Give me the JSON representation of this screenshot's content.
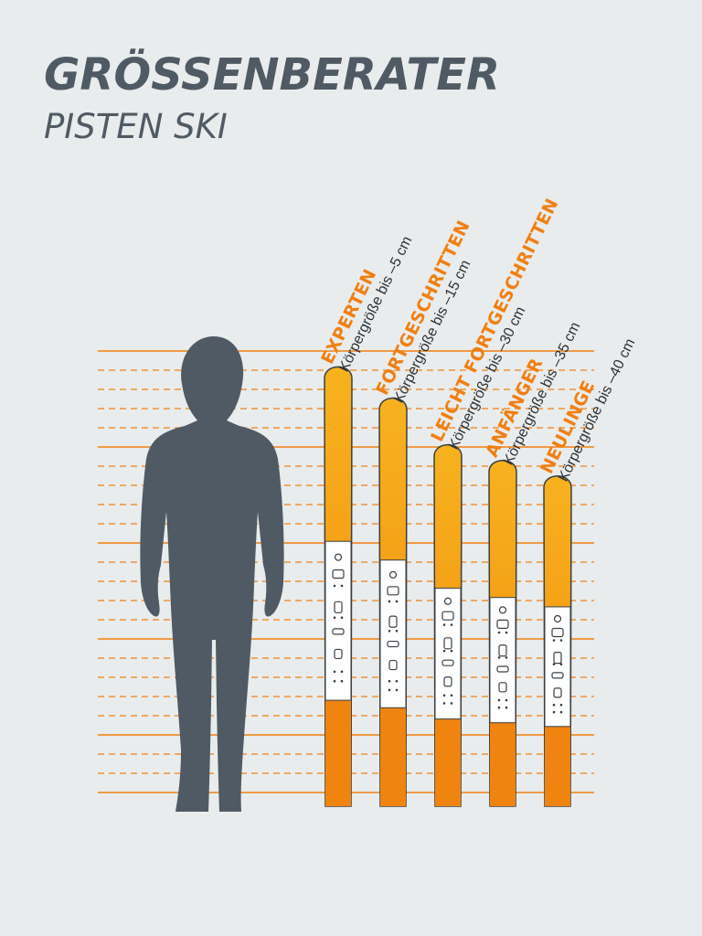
{
  "header": {
    "title": "GRÖSSENBERATER",
    "subtitle": "PISTEN SKI"
  },
  "colors": {
    "background": "#e9ecec",
    "accent": "#f07f12",
    "silhouette": "#4f5a64",
    "text_dark": "#2d3135"
  },
  "categories": [
    {
      "name": "EXPERTEN",
      "size_text": "Körpergröße bis –5 cm",
      "offset_cm": -5
    },
    {
      "name": "FORTGESCHRITTEN",
      "size_text": "Körpergröße bis –15 cm",
      "offset_cm": -15
    },
    {
      "name": "LEICHT FORTGESCHRITTEN",
      "size_text": "Körpergröße bis –30 cm",
      "offset_cm": -30
    },
    {
      "name": "ANFÄNGER",
      "size_text": "Körpergröße bis –35 cm",
      "offset_cm": -35
    },
    {
      "name": "NEULINGE",
      "size_text": "Körpergröße bis –40 cm",
      "offset_cm": -40
    }
  ]
}
